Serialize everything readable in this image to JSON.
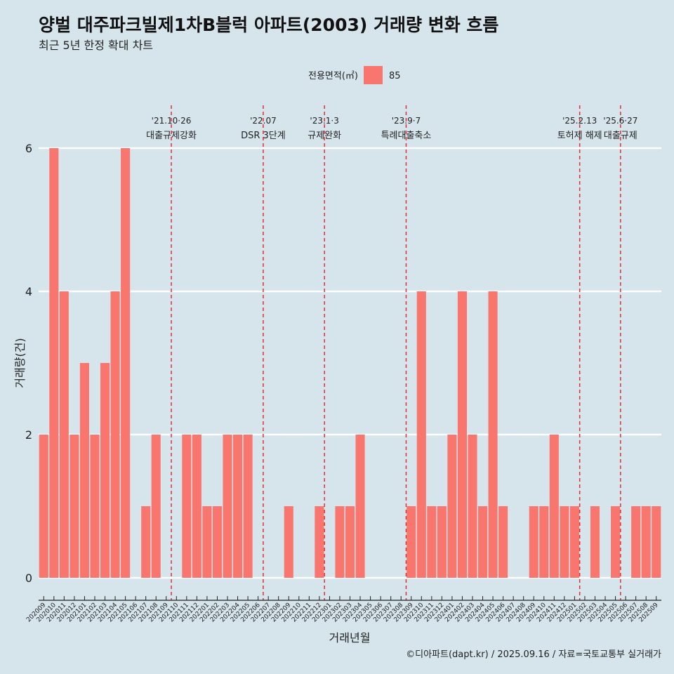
{
  "chart_data": {
    "type": "bar",
    "title": "양벌 대주파크빌제1차B블럭 아파트(2003) 거래량 변화 흐름",
    "subtitle": "최근 5년 한정 확대 차트",
    "xlabel": "거래년월",
    "ylabel": "거래량(건)",
    "ylim": [
      0,
      6
    ],
    "yticks": [
      0,
      2,
      4,
      6
    ],
    "grid": "horizontal",
    "legend": {
      "title": "전용면적(㎡)",
      "placement": "top",
      "entries": [
        {
          "name": "85",
          "color": "#f8766d"
        }
      ]
    },
    "bar_color": "#f8766d",
    "categories": [
      "202009",
      "202010",
      "202011",
      "202012",
      "202101",
      "202102",
      "202103",
      "202104",
      "202105",
      "202106",
      "202107",
      "202108",
      "202109",
      "202110",
      "202111",
      "202112",
      "202201",
      "202202",
      "202203",
      "202204",
      "202205",
      "202206",
      "202207",
      "202208",
      "202209",
      "202210",
      "202211",
      "202212",
      "202301",
      "202302",
      "202303",
      "202304",
      "202305",
      "202306",
      "202307",
      "202308",
      "202309",
      "202310",
      "202311",
      "202312",
      "202401",
      "202402",
      "202403",
      "202404",
      "202405",
      "202406",
      "202407",
      "202408",
      "202409",
      "202410",
      "202411",
      "202412",
      "202501",
      "202502",
      "202503",
      "202504",
      "202505",
      "202506",
      "202507",
      "202508",
      "202509"
    ],
    "series": [
      {
        "values": [
          2,
          6,
          4,
          2,
          3,
          2,
          3,
          4,
          6,
          0,
          1,
          2,
          0,
          0,
          2,
          2,
          1,
          1,
          2,
          2,
          2,
          0,
          0,
          0,
          1,
          0,
          0,
          1,
          0,
          1,
          1,
          2,
          0,
          0,
          0,
          0,
          1,
          4,
          1,
          1,
          2,
          4,
          2,
          1,
          4,
          1,
          0,
          0,
          1,
          1,
          2,
          1,
          1,
          0,
          1,
          0,
          1,
          0,
          1,
          1,
          1
        ]
      }
    ],
    "events": [
      {
        "category": "202110",
        "date": "'21.10·26",
        "label": "대출규제강화",
        "color": "#e03030"
      },
      {
        "category": "202207",
        "date": "'22.07",
        "label": "DSR 3단계",
        "color": "#e03030"
      },
      {
        "category": "202301",
        "date": "'23.1·3",
        "label": "규제완화",
        "color": "#e03030"
      },
      {
        "category": "202309",
        "date": "'23.9·7",
        "label": "특례대출축소",
        "color": "#e03030"
      },
      {
        "category": "202502",
        "date": "'25.2.13",
        "label": "토허제 해제",
        "color": "#e03030"
      },
      {
        "category": "202506",
        "date": "'25.6·27",
        "label": "대출규제",
        "color": "#e03030"
      }
    ]
  },
  "caption": "©디아파트(dapt.kr) / 2025.09.16 / 자료=국토교통부 실거래가"
}
